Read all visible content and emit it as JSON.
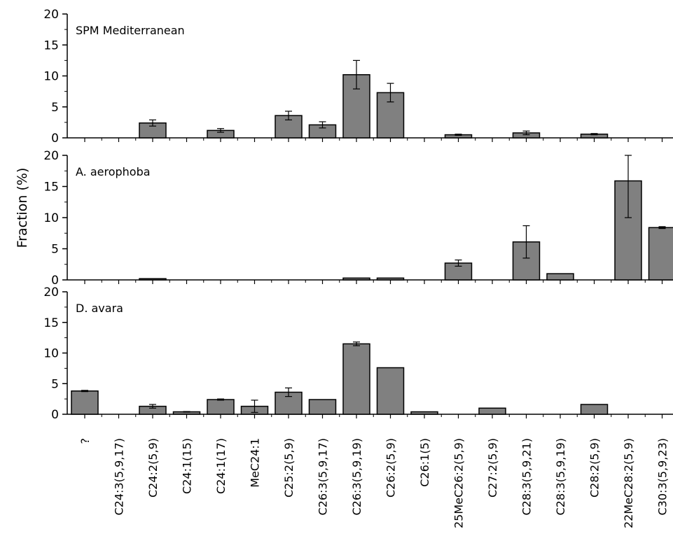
{
  "chart_data": {
    "type": "bar",
    "ylabel": "Fraction (%)",
    "ylim": [
      0,
      20
    ],
    "yticks": [
      "0",
      "5",
      "10",
      "15",
      "20"
    ],
    "bar_color": "#808080",
    "categories": [
      "?",
      "C24:3(5,9,17)",
      "C24:2(5,9)",
      "C24:1(15)",
      "C24:1(17)",
      "MeC24:1",
      "C25:2(5,9)",
      "C26:3(5,9,17)",
      "C26:3(5,9,19)",
      "C26:2(5,9)",
      "C26:1(5)",
      "25MeC26:2(5,9)",
      "C27:2(5,9)",
      "C28:3(5,9,21)",
      "C28:3(5,9,19)",
      "C28:2(5,9)",
      "22MeC28:2(5,9)",
      "C30:3(5,9,23)"
    ],
    "panels": [
      {
        "title": "SPM Mediterranean",
        "values": [
          0,
          0,
          2.4,
          0,
          1.2,
          0,
          3.6,
          2.1,
          10.2,
          7.3,
          0,
          0.5,
          0,
          0.8,
          0,
          0.6,
          0,
          0
        ],
        "errors": [
          0,
          0,
          0.5,
          0,
          0.3,
          0,
          0.7,
          0.5,
          2.3,
          1.5,
          0,
          0.1,
          0,
          0.3,
          0,
          0.1,
          0,
          0
        ]
      },
      {
        "title": "A. aerophoba",
        "values": [
          0,
          0,
          0.2,
          0,
          0,
          0,
          0,
          0,
          0.3,
          0.3,
          0,
          2.7,
          0,
          6.1,
          1.0,
          0,
          15.9,
          8.4
        ],
        "errors": [
          0,
          0,
          0,
          0,
          0,
          0,
          0,
          0,
          0,
          0,
          0,
          0.5,
          0,
          2.6,
          0,
          0,
          5.9,
          0.15
        ]
      },
      {
        "title": "D. avara",
        "values": [
          3.8,
          0,
          1.3,
          0.4,
          2.4,
          1.3,
          3.6,
          2.4,
          11.5,
          7.6,
          0.4,
          0,
          1.0,
          0,
          0,
          1.6,
          0,
          0
        ],
        "errors": [
          0.1,
          0,
          0.3,
          0.05,
          0.1,
          1.0,
          0.7,
          0,
          0.3,
          0,
          0,
          0,
          0,
          0,
          0,
          0,
          0,
          0
        ]
      }
    ]
  }
}
